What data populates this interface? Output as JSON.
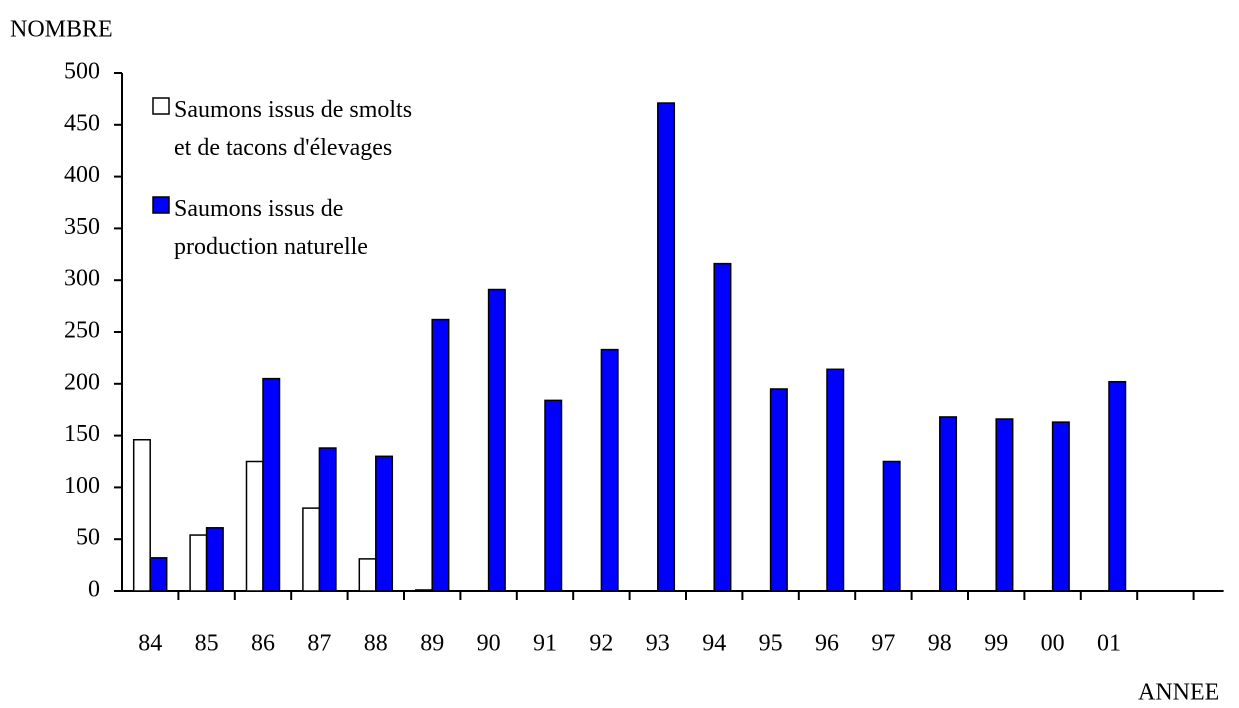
{
  "chart_data": {
    "type": "bar",
    "y_label": "NOMBRE",
    "x_label": "ANNEE",
    "categories": [
      "84",
      "85",
      "86",
      "87",
      "88",
      "89",
      "90",
      "91",
      "92",
      "93",
      "94",
      "95",
      "96",
      "97",
      "98",
      "99",
      "00",
      "01",
      null
    ],
    "series": [
      {
        "name": "Saumons issus de smolts\net de tacons d'élevages",
        "color": "#ffffff",
        "values": [
          146,
          54,
          125,
          80,
          31,
          1,
          null,
          null,
          null,
          null,
          null,
          null,
          null,
          null,
          null,
          null,
          null,
          null,
          null
        ]
      },
      {
        "name": "Saumons issus de\nproduction naturelle",
        "color": "#0000ff",
        "values": [
          32,
          61,
          205,
          138,
          130,
          262,
          291,
          184,
          233,
          471,
          316,
          195,
          214,
          125,
          168,
          166,
          163,
          202,
          null
        ]
      }
    ],
    "ylim": [
      0,
      500
    ],
    "yticks": [
      0,
      50,
      100,
      150,
      200,
      250,
      300,
      350,
      400,
      450,
      500
    ],
    "legend": "upper left",
    "grid": false
  }
}
